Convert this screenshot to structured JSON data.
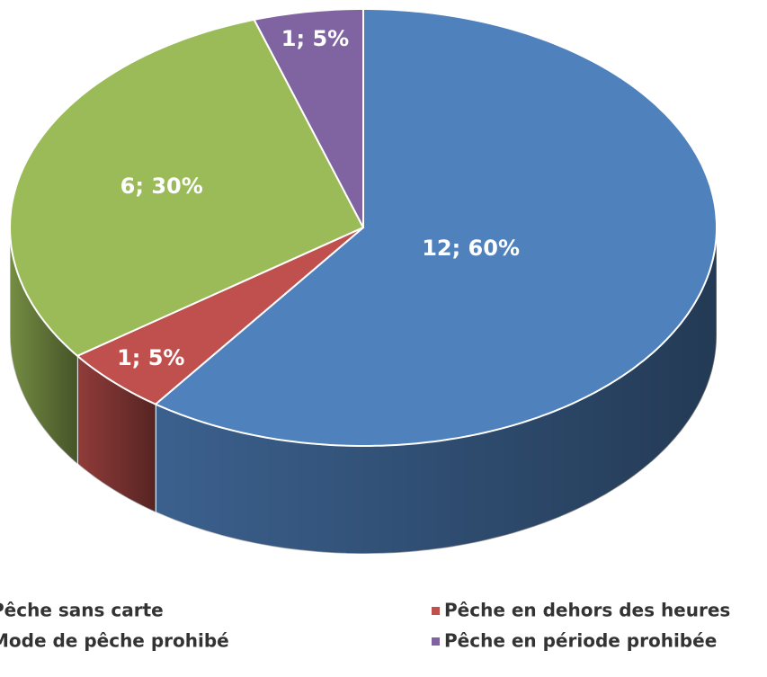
{
  "chart_data": {
    "type": "pie3d",
    "categories": [
      "Pêche sans carte",
      "Pêche en dehors des heures",
      "Mode de pêche prohibé",
      "Pêche en période prohibée"
    ],
    "values": [
      12,
      1,
      6,
      1
    ],
    "value_labels": [
      "12; 60%",
      "1; 5%",
      "6; 30%",
      "1; 5%"
    ],
    "colors": [
      "#4f81bd",
      "#c0504d",
      "#9bbb59",
      "#8064a2"
    ],
    "legend": "bottom"
  }
}
